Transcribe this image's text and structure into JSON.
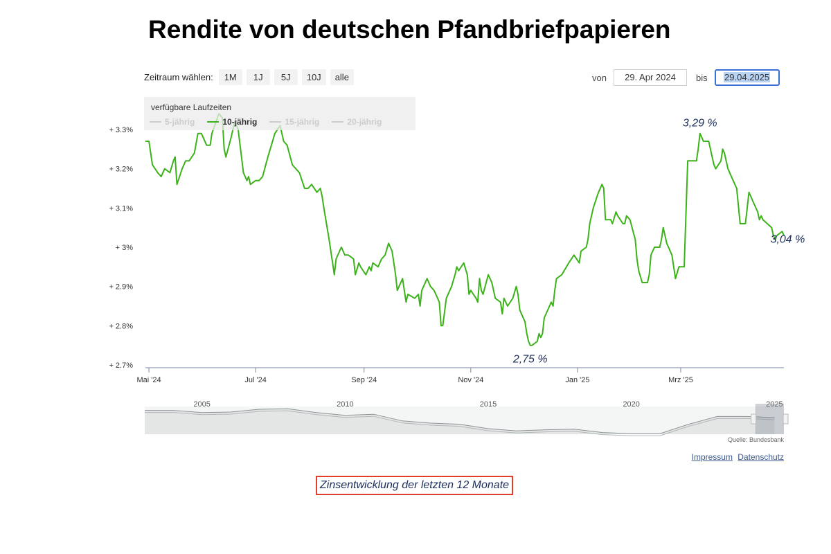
{
  "page": {
    "title": "Rendite von deutschen Pfandbriefpapieren"
  },
  "range_selector": {
    "label": "Zeitraum wählen:",
    "buttons": [
      "1M",
      "1J",
      "5J",
      "10J",
      "alle"
    ]
  },
  "date_range": {
    "from_label": "von",
    "from_value": "29. Apr 2024",
    "to_label": "bis",
    "to_value": "29.04.2025"
  },
  "legend": {
    "title": "verfügbare Laufzeiten",
    "items": [
      {
        "label": "5-jährig",
        "active": false
      },
      {
        "label": "10-jährig",
        "active": true
      },
      {
        "label": "15-jährig",
        "active": false
      },
      {
        "label": "20-jährig",
        "active": false
      }
    ]
  },
  "colors": {
    "series": "#3cb21a",
    "inactive": "#cccccc",
    "annotation": "#1b2d5a",
    "caption_border": "#e23c2a"
  },
  "chart_data": {
    "type": "line",
    "series": [
      {
        "name": "10-jährig",
        "points": [
          [
            "2024-04-29",
            3.27
          ],
          [
            "2024-05-01",
            3.27
          ],
          [
            "2024-05-03",
            3.21
          ],
          [
            "2024-05-06",
            3.19
          ],
          [
            "2024-05-08",
            3.18
          ],
          [
            "2024-05-10",
            3.2
          ],
          [
            "2024-05-13",
            3.19
          ],
          [
            "2024-05-15",
            3.22
          ],
          [
            "2024-05-16",
            3.23
          ],
          [
            "2024-05-17",
            3.16
          ],
          [
            "2024-05-20",
            3.2
          ],
          [
            "2024-05-22",
            3.22
          ],
          [
            "2024-05-24",
            3.22
          ],
          [
            "2024-05-27",
            3.24
          ],
          [
            "2024-05-29",
            3.29
          ],
          [
            "2024-05-31",
            3.29
          ],
          [
            "2024-06-03",
            3.26
          ],
          [
            "2024-06-05",
            3.26
          ],
          [
            "2024-06-06",
            3.29
          ],
          [
            "2024-06-10",
            3.34
          ],
          [
            "2024-06-12",
            3.33
          ],
          [
            "2024-06-13",
            3.25
          ],
          [
            "2024-06-14",
            3.23
          ],
          [
            "2024-06-17",
            3.28
          ],
          [
            "2024-06-19",
            3.32
          ],
          [
            "2024-06-21",
            3.3
          ],
          [
            "2024-06-24",
            3.19
          ],
          [
            "2024-06-26",
            3.17
          ],
          [
            "2024-06-27",
            3.18
          ],
          [
            "2024-06-28",
            3.16
          ],
          [
            "2024-07-01",
            3.17
          ],
          [
            "2024-07-03",
            3.17
          ],
          [
            "2024-07-05",
            3.18
          ],
          [
            "2024-07-08",
            3.23
          ],
          [
            "2024-07-10",
            3.26
          ],
          [
            "2024-07-12",
            3.29
          ],
          [
            "2024-07-15",
            3.31
          ],
          [
            "2024-07-17",
            3.27
          ],
          [
            "2024-07-19",
            3.26
          ],
          [
            "2024-07-22",
            3.21
          ],
          [
            "2024-07-24",
            3.2
          ],
          [
            "2024-07-26",
            3.19
          ],
          [
            "2024-07-29",
            3.15
          ],
          [
            "2024-07-31",
            3.15
          ],
          [
            "2024-08-02",
            3.16
          ],
          [
            "2024-08-05",
            3.14
          ],
          [
            "2024-08-07",
            3.15
          ],
          [
            "2024-08-08",
            3.13
          ],
          [
            "2024-08-09",
            3.1
          ],
          [
            "2024-08-12",
            3.02
          ],
          [
            "2024-08-14",
            2.96
          ],
          [
            "2024-08-15",
            2.93
          ],
          [
            "2024-08-16",
            2.97
          ],
          [
            "2024-08-19",
            3.0
          ],
          [
            "2024-08-21",
            2.98
          ],
          [
            "2024-08-23",
            2.98
          ],
          [
            "2024-08-26",
            2.97
          ],
          [
            "2024-08-27",
            2.93
          ],
          [
            "2024-08-29",
            2.96
          ],
          [
            "2024-08-30",
            2.95
          ],
          [
            "2024-09-02",
            2.93
          ],
          [
            "2024-09-04",
            2.95
          ],
          [
            "2024-09-05",
            2.94
          ],
          [
            "2024-09-06",
            2.96
          ],
          [
            "2024-09-09",
            2.95
          ],
          [
            "2024-09-11",
            2.97
          ],
          [
            "2024-09-13",
            2.98
          ],
          [
            "2024-09-15",
            3.01
          ],
          [
            "2024-09-17",
            2.99
          ],
          [
            "2024-09-19",
            2.93
          ],
          [
            "2024-09-20",
            2.89
          ],
          [
            "2024-09-23",
            2.92
          ],
          [
            "2024-09-25",
            2.86
          ],
          [
            "2024-09-26",
            2.88
          ],
          [
            "2024-09-30",
            2.87
          ],
          [
            "2024-10-02",
            2.88
          ],
          [
            "2024-10-03",
            2.85
          ],
          [
            "2024-10-04",
            2.89
          ],
          [
            "2024-10-07",
            2.92
          ],
          [
            "2024-10-09",
            2.9
          ],
          [
            "2024-10-11",
            2.89
          ],
          [
            "2024-10-14",
            2.86
          ],
          [
            "2024-10-15",
            2.8
          ],
          [
            "2024-10-16",
            2.8
          ],
          [
            "2024-10-18",
            2.87
          ],
          [
            "2024-10-21",
            2.9
          ],
          [
            "2024-10-23",
            2.93
          ],
          [
            "2024-10-24",
            2.95
          ],
          [
            "2024-10-25",
            2.94
          ],
          [
            "2024-10-28",
            2.96
          ],
          [
            "2024-10-30",
            2.93
          ],
          [
            "2024-10-31",
            2.88
          ],
          [
            "2024-11-01",
            2.89
          ],
          [
            "2024-11-04",
            2.87
          ],
          [
            "2024-11-05",
            2.86
          ],
          [
            "2024-11-06",
            2.92
          ],
          [
            "2024-11-07",
            2.89
          ],
          [
            "2024-11-08",
            2.88
          ],
          [
            "2024-11-11",
            2.93
          ],
          [
            "2024-11-13",
            2.91
          ],
          [
            "2024-11-14",
            2.89
          ],
          [
            "2024-11-15",
            2.87
          ],
          [
            "2024-11-18",
            2.86
          ],
          [
            "2024-11-19",
            2.83
          ],
          [
            "2024-11-20",
            2.87
          ],
          [
            "2024-11-22",
            2.85
          ],
          [
            "2024-11-25",
            2.87
          ],
          [
            "2024-11-27",
            2.9
          ],
          [
            "2024-11-28",
            2.88
          ],
          [
            "2024-11-29",
            2.84
          ],
          [
            "2024-12-02",
            2.81
          ],
          [
            "2024-12-03",
            2.78
          ],
          [
            "2024-12-04",
            2.76
          ],
          [
            "2024-12-05",
            2.75
          ],
          [
            "2024-12-06",
            2.75
          ],
          [
            "2024-12-09",
            2.76
          ],
          [
            "2024-12-10",
            2.78
          ],
          [
            "2024-12-11",
            2.77
          ],
          [
            "2024-12-12",
            2.78
          ],
          [
            "2024-12-13",
            2.82
          ],
          [
            "2024-12-16",
            2.85
          ],
          [
            "2024-12-17",
            2.86
          ],
          [
            "2024-12-18",
            2.85
          ],
          [
            "2024-12-19",
            2.89
          ],
          [
            "2024-12-20",
            2.92
          ],
          [
            "2024-12-23",
            2.93
          ],
          [
            "2024-12-27",
            2.96
          ],
          [
            "2024-12-30",
            2.98
          ],
          [
            "2025-01-02",
            2.96
          ],
          [
            "2025-01-03",
            2.99
          ],
          [
            "2025-01-06",
            3.0
          ],
          [
            "2025-01-07",
            3.02
          ],
          [
            "2025-01-08",
            3.06
          ],
          [
            "2025-01-10",
            3.1
          ],
          [
            "2025-01-13",
            3.14
          ],
          [
            "2025-01-15",
            3.16
          ],
          [
            "2025-01-16",
            3.15
          ],
          [
            "2025-01-17",
            3.07
          ],
          [
            "2025-01-20",
            3.07
          ],
          [
            "2025-01-21",
            3.06
          ],
          [
            "2025-01-23",
            3.09
          ],
          [
            "2025-01-24",
            3.08
          ],
          [
            "2025-01-27",
            3.06
          ],
          [
            "2025-01-28",
            3.06
          ],
          [
            "2025-01-29",
            3.08
          ],
          [
            "2025-01-31",
            3.07
          ],
          [
            "2025-02-03",
            3.02
          ],
          [
            "2025-02-04",
            2.97
          ],
          [
            "2025-02-05",
            2.94
          ],
          [
            "2025-02-07",
            2.91
          ],
          [
            "2025-02-10",
            2.91
          ],
          [
            "2025-02-11",
            2.93
          ],
          [
            "2025-02-12",
            2.98
          ],
          [
            "2025-02-14",
            3.0
          ],
          [
            "2025-02-17",
            3.0
          ],
          [
            "2025-02-18",
            3.02
          ],
          [
            "2025-02-19",
            3.05
          ],
          [
            "2025-02-21",
            3.01
          ],
          [
            "2025-02-24",
            2.98
          ],
          [
            "2025-02-26",
            2.92
          ],
          [
            "2025-02-28",
            2.95
          ],
          [
            "2025-03-03",
            2.95
          ],
          [
            "2025-03-05",
            3.22
          ],
          [
            "2025-03-07",
            3.22
          ],
          [
            "2025-03-10",
            3.22
          ],
          [
            "2025-03-11",
            3.25
          ],
          [
            "2025-03-12",
            3.29
          ],
          [
            "2025-03-13",
            3.28
          ],
          [
            "2025-03-14",
            3.27
          ],
          [
            "2025-03-17",
            3.27
          ],
          [
            "2025-03-19",
            3.23
          ],
          [
            "2025-03-20",
            3.21
          ],
          [
            "2025-03-21",
            3.2
          ],
          [
            "2025-03-24",
            3.22
          ],
          [
            "2025-03-25",
            3.25
          ],
          [
            "2025-03-26",
            3.24
          ],
          [
            "2025-03-27",
            3.22
          ],
          [
            "2025-03-28",
            3.2
          ],
          [
            "2025-03-31",
            3.17
          ],
          [
            "2025-04-02",
            3.15
          ],
          [
            "2025-04-04",
            3.06
          ],
          [
            "2025-04-07",
            3.06
          ],
          [
            "2025-04-08",
            3.1
          ],
          [
            "2025-04-09",
            3.14
          ],
          [
            "2025-04-11",
            3.12
          ],
          [
            "2025-04-14",
            3.09
          ],
          [
            "2025-04-15",
            3.07
          ],
          [
            "2025-04-16",
            3.08
          ],
          [
            "2025-04-17",
            3.07
          ],
          [
            "2025-04-22",
            3.05
          ],
          [
            "2025-04-23",
            3.03
          ],
          [
            "2025-04-24",
            3.02
          ],
          [
            "2025-04-25",
            3.03
          ],
          [
            "2025-04-28",
            3.04
          ],
          [
            "2025-04-29",
            3.03
          ]
        ]
      }
    ],
    "y_tick_labels": [
      {
        "value": 3.3,
        "label": "+ 3.3%"
      },
      {
        "value": 3.2,
        "label": "+ 3.2%"
      },
      {
        "value": 3.1,
        "label": "+ 3.1%"
      },
      {
        "value": 3.0,
        "label": "+ 3%"
      },
      {
        "value": 2.9,
        "label": "+ 2.9%"
      },
      {
        "value": 2.8,
        "label": "+ 2.8%"
      },
      {
        "value": 2.7,
        "label": "+ 2.7%"
      }
    ],
    "x_tick_labels": [
      {
        "date": "2024-05-01",
        "label": "Mai '24"
      },
      {
        "date": "2024-07-01",
        "label": "Jul '24"
      },
      {
        "date": "2024-09-01",
        "label": "Sep '24"
      },
      {
        "date": "2024-11-01",
        "label": "Nov '24"
      },
      {
        "date": "2025-01-01",
        "label": "Jan '25"
      },
      {
        "date": "2025-03-01",
        "label": "Mrz '25"
      }
    ],
    "xlim": [
      "2024-04-29",
      "2025-04-29"
    ],
    "ylim": [
      2.7,
      3.35
    ],
    "grid": false,
    "legend_position": "top-left",
    "annotations": [
      {
        "date": "2025-03-12",
        "value": 3.29,
        "label": "3,29 %"
      },
      {
        "date": "2024-12-05",
        "value": 2.75,
        "label": "2,75 %"
      },
      {
        "date": "2025-04-28",
        "value": 3.04,
        "label": "3,04 %"
      }
    ],
    "navigator": {
      "tick_labels": [
        "2005",
        "2010",
        "2015",
        "2020",
        "2025"
      ],
      "series": [
        [
          2003,
          4.3
        ],
        [
          2004,
          4.3
        ],
        [
          2005,
          3.9
        ],
        [
          2006,
          4.0
        ],
        [
          2007,
          4.5
        ],
        [
          2008,
          4.6
        ],
        [
          2009,
          3.9
        ],
        [
          2010,
          3.4
        ],
        [
          2011,
          3.6
        ],
        [
          2012,
          2.4
        ],
        [
          2013,
          2.0
        ],
        [
          2014,
          1.8
        ],
        [
          2015,
          1.0
        ],
        [
          2016,
          0.6
        ],
        [
          2017,
          0.8
        ],
        [
          2018,
          0.9
        ],
        [
          2019,
          0.3
        ],
        [
          2020,
          0.1
        ],
        [
          2021,
          0.1
        ],
        [
          2022,
          1.8
        ],
        [
          2023,
          3.2
        ],
        [
          2024,
          3.2
        ],
        [
          2025,
          3.0
        ]
      ],
      "xlim": [
        2003,
        2025.33
      ],
      "source": "Quelle: Bundesbank"
    }
  },
  "footer": {
    "impressum": "Impressum",
    "datenschutz": "Datenschutz"
  },
  "caption": "Zinsentwicklung der letzten 12 Monate"
}
